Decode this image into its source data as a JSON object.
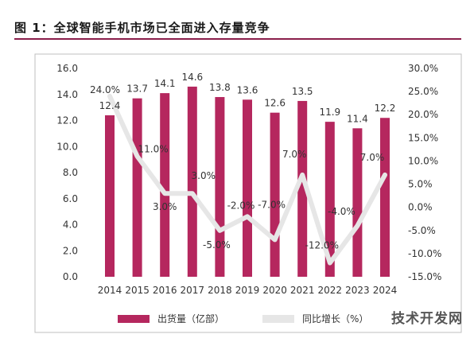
{
  "figure_title": "图 1：全球智能手机市场已全面进入存量竞争",
  "watermark": "技术开发网",
  "colors": {
    "bar": "#b5275e",
    "line": "#e6e6e6",
    "rule": "#8a1e4b"
  },
  "chart_data": {
    "type": "bar",
    "categories": [
      "2014",
      "2015",
      "2016",
      "2017",
      "2018",
      "2019",
      "2020",
      "2021",
      "2022",
      "2023",
      "2024"
    ],
    "series": [
      {
        "name": "出货量（亿部）",
        "type": "bar",
        "axis": "left",
        "values": [
          12.4,
          13.7,
          14.1,
          14.6,
          13.8,
          13.6,
          12.6,
          13.5,
          11.9,
          11.4,
          12.2
        ],
        "labels": [
          "12.4",
          "13.7",
          "14.1",
          "14.6",
          "13.8",
          "13.6",
          "12.6",
          "13.5",
          "11.9",
          "11.4",
          "12.2"
        ]
      },
      {
        "name": "同比增长（%）",
        "type": "line",
        "axis": "right",
        "values": [
          24.0,
          11.0,
          3.0,
          3.0,
          -5.0,
          -2.0,
          -7.0,
          7.0,
          -12.0,
          -4.0,
          7.0
        ],
        "labels": [
          "24.0%",
          "11.0%",
          "3.0%",
          "3.0%",
          "-5.0%",
          "-2.0%",
          "-7.0%",
          "7.0%",
          "-12.0%",
          "-4.0%",
          "7.0%"
        ]
      }
    ],
    "y_left": {
      "min": 0,
      "max": 16,
      "step": 2,
      "ticks": [
        "0.0",
        "2.0",
        "4.0",
        "6.0",
        "8.0",
        "10.0",
        "12.0",
        "14.0",
        "16.0"
      ]
    },
    "y_right": {
      "min": -15,
      "max": 30,
      "step": 5,
      "ticks": [
        "-15.0%",
        "-10.0%",
        "-5.0%",
        "0.0%",
        "5.0%",
        "10.0%",
        "15.0%",
        "20.0%",
        "25.0%",
        "30.0%"
      ]
    },
    "grid": false,
    "legend": {
      "position": "bottom",
      "items": [
        "出货量（亿部）",
        "同比增长（%）"
      ]
    }
  }
}
